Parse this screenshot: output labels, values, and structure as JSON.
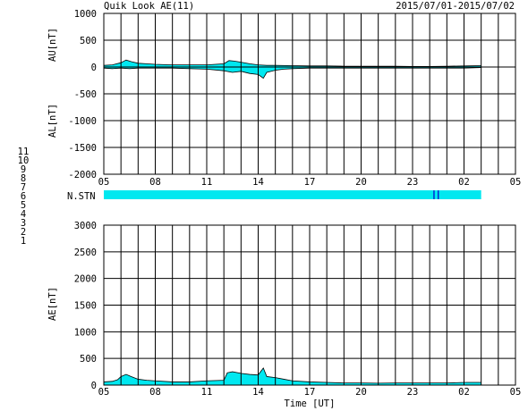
{
  "header": {
    "title": "Quik Look AE(11)",
    "date_range": "2015/07/01-2015/07/02"
  },
  "axis": {
    "x_ticks": [
      "05",
      "08",
      "11",
      "14",
      "17",
      "20",
      "23",
      "02",
      "05"
    ],
    "x_label": "Time [UT]",
    "top_ylabel_au": "AU[nT]",
    "top_ylabel_al": "AL[nT]",
    "top_yticks": [
      "1000",
      "500",
      "0",
      "-500",
      "-1000",
      "-1500",
      "-2000"
    ],
    "bottom_ylabel": "AE[nT]",
    "bottom_yticks": [
      "3000",
      "2500",
      "2000",
      "1500",
      "1000",
      "500",
      "0"
    ],
    "stn_label": "N.STN"
  },
  "station_legend": [
    {
      "label": "11",
      "color": "#00e0e0"
    },
    {
      "label": "10",
      "color": "#ff00ff"
    },
    {
      "label": "9",
      "color": "#0000cc"
    },
    {
      "label": "8",
      "color": "#e8e800"
    },
    {
      "label": "7",
      "color": "#a0e000"
    },
    {
      "label": "6",
      "color": "#ff0000"
    },
    {
      "label": "5",
      "color": "#c0c0c0"
    },
    {
      "label": "4",
      "color": "#a0a0a0"
    },
    {
      "label": "3",
      "color": "#00a0a0"
    },
    {
      "label": "2",
      "color": "#a000a0"
    },
    {
      "label": "1",
      "color": "#0000ff"
    }
  ],
  "colors": {
    "fill": "#00e8f0",
    "line": "#000000",
    "grid": "#000000",
    "marker": "#0000cc"
  },
  "chart_data": [
    {
      "type": "area",
      "panel": "AU/AL",
      "x_unit": "hours from 2015-07-01 05:00 UT",
      "xlim": [
        0,
        24
      ],
      "ylim": [
        -2000,
        1000
      ],
      "data_end_hour": 22,
      "series": [
        {
          "name": "AU",
          "x": [
            0,
            0.5,
            1,
            1.3,
            1.6,
            2,
            2.5,
            3,
            4,
            5,
            6,
            7,
            7.3,
            7.6,
            8,
            8.5,
            9,
            9.5,
            10,
            11,
            12,
            13,
            14,
            15,
            16,
            17,
            18,
            19,
            20,
            21,
            22
          ],
          "y": [
            30,
            40,
            80,
            130,
            100,
            70,
            60,
            50,
            40,
            40,
            40,
            60,
            120,
            110,
            90,
            60,
            40,
            30,
            30,
            25,
            20,
            20,
            15,
            15,
            15,
            15,
            10,
            10,
            15,
            20,
            25
          ]
        },
        {
          "name": "AL",
          "x": [
            0,
            0.5,
            1,
            1.5,
            2,
            3,
            4,
            5,
            6,
            7,
            7.5,
            8,
            8.5,
            9,
            9.3,
            9.5,
            10,
            10.5,
            11,
            12,
            13,
            14,
            15,
            16,
            17,
            18,
            19,
            20,
            21,
            22
          ],
          "y": [
            -20,
            -30,
            -20,
            -30,
            -20,
            -20,
            -20,
            -30,
            -40,
            -70,
            -100,
            -80,
            -120,
            -140,
            -210,
            -100,
            -60,
            -40,
            -30,
            -20,
            -20,
            -20,
            -20,
            -20,
            -20,
            -20,
            -20,
            -20,
            -20,
            -10
          ]
        }
      ]
    },
    {
      "type": "area",
      "panel": "AE",
      "x_unit": "hours from 2015-07-01 05:00 UT",
      "xlim": [
        0,
        24
      ],
      "ylim": [
        0,
        3000
      ],
      "data_end_hour": 22,
      "series": [
        {
          "name": "AE",
          "x": [
            0,
            0.5,
            0.8,
            1,
            1.3,
            1.6,
            2,
            2.5,
            3,
            4,
            5,
            6,
            7,
            7.2,
            7.5,
            8,
            8.5,
            9,
            9.3,
            9.5,
            10,
            10.5,
            11,
            12,
            13,
            14,
            15,
            16,
            17,
            18,
            19,
            20,
            21,
            22
          ],
          "y": [
            60,
            70,
            100,
            160,
            200,
            160,
            110,
            90,
            80,
            60,
            60,
            80,
            90,
            230,
            250,
            220,
            200,
            190,
            320,
            160,
            140,
            110,
            80,
            60,
            50,
            40,
            40,
            35,
            40,
            40,
            40,
            40,
            50,
            50
          ]
        }
      ]
    },
    {
      "type": "bar",
      "panel": "N.STN",
      "xlim": [
        0,
        24
      ],
      "stations_band": {
        "from_hour": 0,
        "to_hour": 22
      },
      "markers_hour": [
        19.25,
        19.5
      ]
    }
  ]
}
